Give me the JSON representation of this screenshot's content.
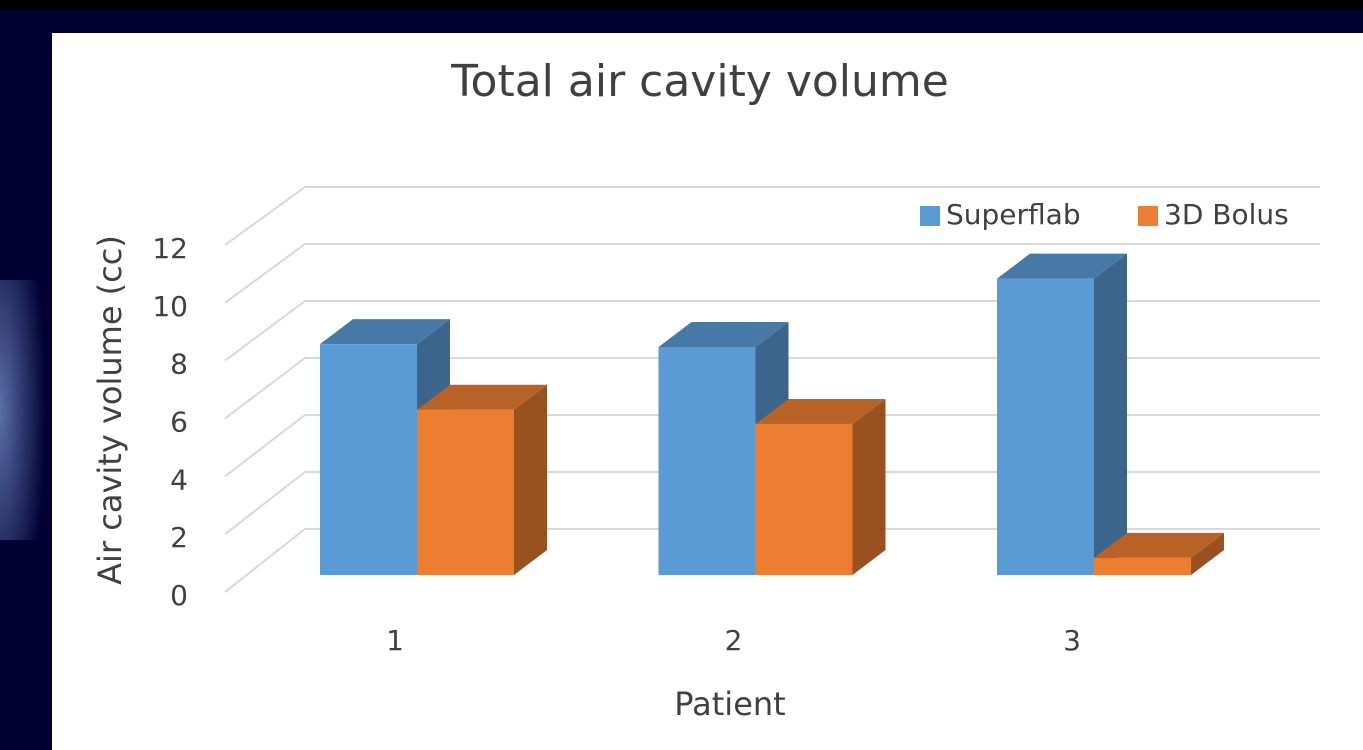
{
  "chart_data": {
    "type": "bar3d",
    "title": "Total air cavity volume",
    "x_label": "Patient",
    "y_label": "Air cavity volume (cc)",
    "categories": [
      "1",
      "2",
      "3"
    ],
    "series": [
      {
        "name": "Superflab",
        "color": "#5b9bd5",
        "values": [
          8.1,
          8.0,
          10.4
        ]
      },
      {
        "name": "3D Bolus",
        "color": "#ed7d31",
        "values": [
          5.8,
          5.3,
          0.6
        ]
      }
    ],
    "ylim": [
      0,
      12
    ],
    "yticks": [
      0,
      2,
      4,
      6,
      8,
      10,
      12
    ],
    "grid": true,
    "legend": "top-right"
  }
}
